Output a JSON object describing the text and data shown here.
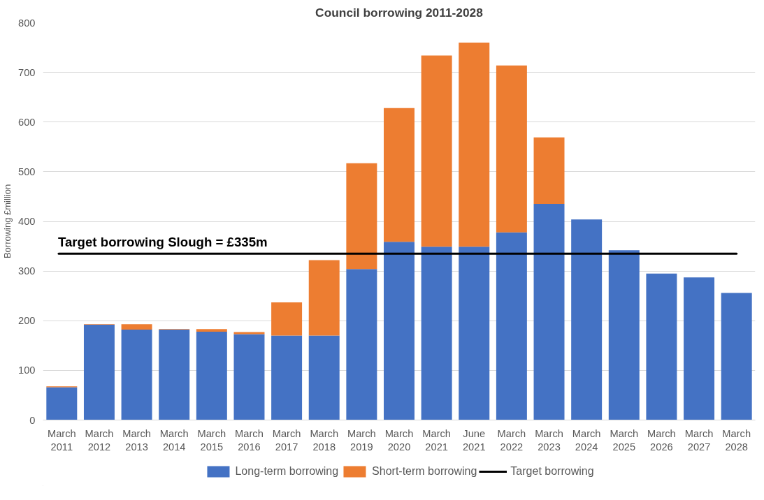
{
  "chart_data": {
    "type": "bar",
    "title": "Council borrowing 2011-2028",
    "ylabel": "Borrowing £million",
    "stacked": true,
    "categories": [
      "March 2011",
      "March 2012",
      "March 2013",
      "March 2014",
      "March 2015",
      "March 2016",
      "March 2017",
      "March 2018",
      "March 2019",
      "March 2020",
      "March 2021",
      "June 2021",
      "March 2022",
      "March 2023",
      "March 2024",
      "March 2025",
      "March 2026",
      "March 2027",
      "March 2028"
    ],
    "series": [
      {
        "name": "Long-term borrowing",
        "color": "#4472c4",
        "values": [
          66,
          192,
          182,
          182,
          178,
          173,
          170,
          170,
          304,
          359,
          349,
          349,
          378,
          435,
          404,
          342,
          295,
          287,
          256
        ]
      },
      {
        "name": "Short-term borrowing",
        "color": "#ed7d31",
        "values": [
          2,
          1,
          11,
          1,
          5,
          4,
          67,
          152,
          213,
          269,
          385,
          411,
          336,
          134,
          null,
          null,
          null,
          null,
          null
        ]
      }
    ],
    "ref_lines": [
      {
        "axis": "y",
        "value": 335,
        "label": "Target borrowing",
        "color": "#000000"
      }
    ],
    "annotations": [
      {
        "text": "Target borrowing Slough = £335m",
        "y": 335
      }
    ],
    "ylim": [
      0,
      800
    ],
    "yticks": [
      0,
      100,
      200,
      300,
      400,
      500,
      600,
      700,
      800
    ],
    "grid": "y",
    "legend": "bottom"
  }
}
